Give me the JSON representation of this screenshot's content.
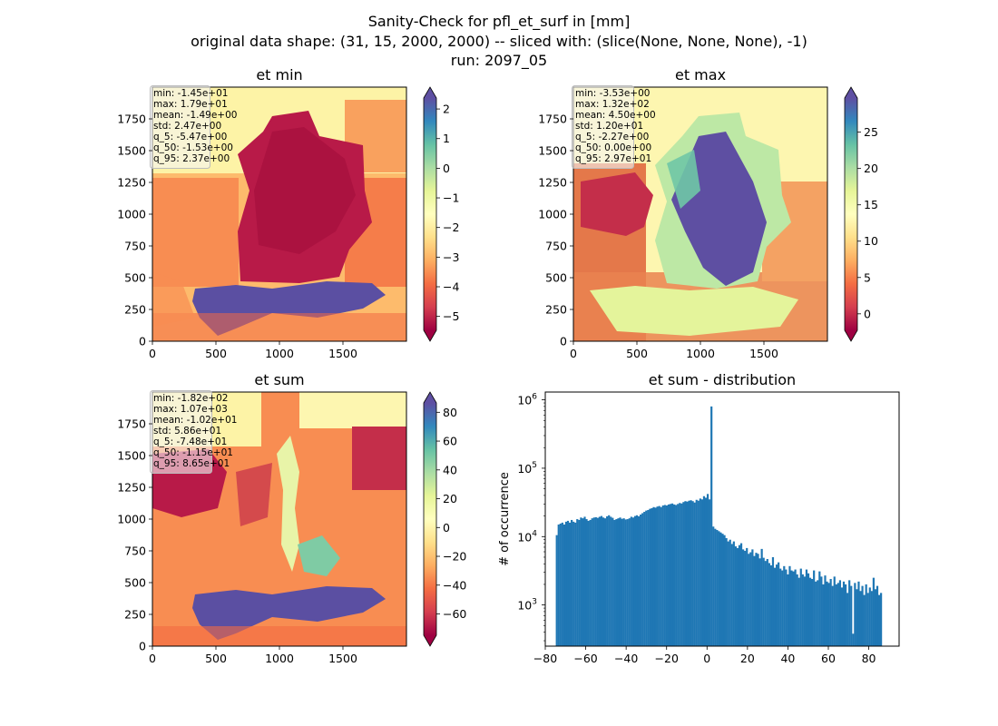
{
  "figure": {
    "title_lines": [
      "Sanity-Check for pfl_et_surf in [mm]",
      "original data shape: (31, 15, 2000, 2000) -- sliced with: (slice(None, None, None), -1)",
      "run: 2097_05"
    ]
  },
  "maps": [
    {
      "title": "et min",
      "stats": [
        "min: -1.45e+01",
        "max: 1.79e+01",
        "mean: -1.49e+00",
        "std: 2.47e+00",
        "q_5: -5.47e+00",
        "q_50: -1.53e+00",
        "q_95: 2.37e+00"
      ],
      "x_ticks": [
        "0",
        "500",
        "1000",
        "1500"
      ],
      "y_ticks": [
        "0",
        "250",
        "500",
        "750",
        "1000",
        "1250",
        "1500",
        "1750"
      ],
      "colorbar": {
        "ticks": [
          "2",
          "1",
          "0",
          "−1",
          "−2",
          "−3",
          "−4",
          "−5"
        ],
        "tick_values": [
          2,
          1,
          0,
          -1,
          -2,
          -3,
          -4,
          -5
        ],
        "vmin": -5.47,
        "vmax": 2.37,
        "colormap": "Spectral"
      }
    },
    {
      "title": "et max",
      "stats": [
        "min: -3.53e+00",
        "max: 1.32e+02",
        "mean: 4.50e+00",
        "std: 1.20e+01",
        "q_5: -2.27e+00",
        "q_50: 0.00e+00",
        "q_95: 2.97e+01"
      ],
      "x_ticks": [
        "0",
        "500",
        "1000",
        "1500"
      ],
      "y_ticks": [
        "0",
        "250",
        "500",
        "750",
        "1000",
        "1250",
        "1500",
        "1750"
      ],
      "colorbar": {
        "ticks": [
          "25",
          "20",
          "15",
          "10",
          "5",
          "0"
        ],
        "tick_values": [
          25,
          20,
          15,
          10,
          5,
          0
        ],
        "vmin": -2.27,
        "vmax": 29.7,
        "colormap": "Spectral"
      }
    },
    {
      "title": "et sum",
      "stats": [
        "min: -1.82e+02",
        "max: 1.07e+03",
        "mean: -1.02e+01",
        "std: 5.86e+01",
        "q_5: -7.48e+01",
        "q_50: -1.15e+01",
        "q_95: 8.65e+01"
      ],
      "x_ticks": [
        "0",
        "500",
        "1000",
        "1500"
      ],
      "y_ticks": [
        "0",
        "250",
        "500",
        "750",
        "1000",
        "1250",
        "1500",
        "1750"
      ],
      "colorbar": {
        "ticks": [
          "80",
          "60",
          "40",
          "20",
          "0",
          "−20",
          "−40",
          "−60"
        ],
        "tick_values": [
          80,
          60,
          40,
          20,
          0,
          -20,
          -40,
          -60
        ],
        "vmin": -74.8,
        "vmax": 86.5,
        "colormap": "Spectral"
      }
    }
  ],
  "chart_data": {
    "type": "bar",
    "title": "et sum - distribution",
    "xlabel": "",
    "ylabel": "# of occurrence",
    "yscale": "log",
    "xlim": [
      -80,
      95
    ],
    "ylim": [
      250,
      1300000
    ],
    "x_ticks": [
      "−80",
      "−60",
      "−40",
      "−20",
      "0",
      "20",
      "40",
      "60",
      "80"
    ],
    "x_tick_values": [
      -80,
      -60,
      -40,
      -20,
      0,
      20,
      40,
      60,
      80
    ],
    "y_ticks": [
      {
        "value": 1000,
        "base": "10",
        "exp": "3"
      },
      {
        "value": 10000,
        "base": "10",
        "exp": "4"
      },
      {
        "value": 100000,
        "base": "10",
        "exp": "5"
      },
      {
        "value": 1000000,
        "base": "10",
        "exp": "6"
      }
    ],
    "bar_color": "#1f77b4",
    "bins": {
      "edges_start": -74.8,
      "edges_end": 86.5,
      "counts": [
        10500,
        15000,
        15500,
        16000,
        15000,
        16500,
        17000,
        16000,
        17500,
        16500,
        16000,
        18000,
        17500,
        19000,
        18500,
        19500,
        18000,
        17000,
        17500,
        18500,
        19000,
        19200,
        18800,
        19500,
        20000,
        19000,
        18500,
        19800,
        20500,
        19500,
        18800,
        17500,
        18000,
        18500,
        19000,
        18200,
        18500,
        17800,
        18000,
        18500,
        19500,
        19000,
        20000,
        20500,
        19800,
        21000,
        22000,
        23000,
        24000,
        24500,
        25500,
        26000,
        27000,
        26500,
        27500,
        28000,
        27000,
        28500,
        29000,
        28500,
        29500,
        30000,
        30500,
        29500,
        29000,
        30000,
        31000,
        30500,
        32000,
        33000,
        32500,
        33500,
        34000,
        33000,
        31500,
        34500,
        33500,
        36000,
        35000,
        39000,
        37000,
        42000,
        35000,
        800000,
        14000,
        13000,
        12500,
        12000,
        11500,
        11000,
        10500,
        9500,
        8500,
        9000,
        7800,
        8500,
        7200,
        6800,
        7500,
        8000,
        6500,
        6200,
        6800,
        5600,
        5900,
        6500,
        5200,
        5800,
        5600,
        4800,
        6600,
        4900,
        4400,
        4700,
        4100,
        3800,
        5000,
        3500,
        3900,
        4200,
        3400,
        3200,
        3700,
        3300,
        2800,
        3700,
        3200,
        3100,
        3300,
        2800,
        2500,
        3400,
        2800,
        2600,
        3300,
        2900,
        2500,
        2400,
        3200,
        2200,
        2300,
        3100,
        2600,
        2000,
        2700,
        2200,
        2100,
        2400,
        1900,
        2600,
        2000,
        2100,
        2300,
        1800,
        2200,
        2000,
        1500,
        2300,
        1900,
        380,
        2100,
        1700,
        2200,
        1600,
        1900,
        1400,
        2000,
        1500,
        1800,
        1600,
        2500,
        1700,
        1900,
        1400,
        1500
      ]
    }
  }
}
